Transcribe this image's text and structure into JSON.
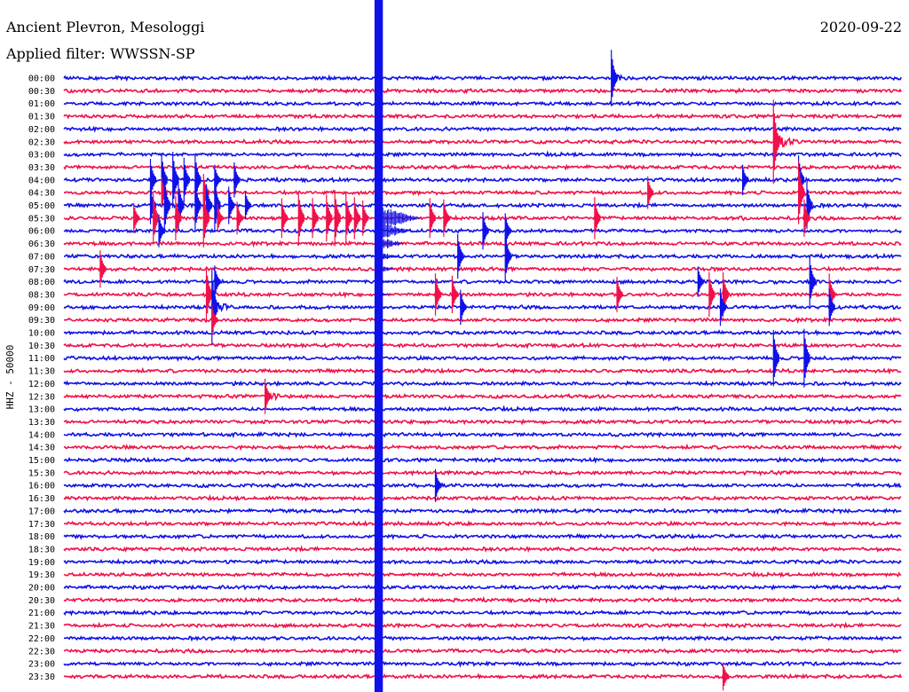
{
  "header": {
    "station": "Ancient Plevron, Mesologgi",
    "filter": "Applied filter: WWSSN-SP",
    "date": "2020-09-22"
  },
  "colors": {
    "trace_even": "#1010e8",
    "trace_odd": "#f0104a",
    "background": "#ffffff",
    "text": "#000000"
  },
  "chart_data": {
    "type": "helicorder",
    "title": "Ancient Plevron, Mesologgi",
    "subtitle": "Applied filter: WWSSN-SP",
    "date": "2020-09-22",
    "ylabel": "HHZ - 50000",
    "xlabel": "",
    "grid": false,
    "legend": "none",
    "row_interval_minutes": 30,
    "x_range_minutes": [
      0,
      30
    ],
    "row_labels": [
      "00:00",
      "00:30",
      "01:00",
      "01:30",
      "02:00",
      "02:30",
      "03:00",
      "03:30",
      "04:00",
      "04:30",
      "05:00",
      "05:30",
      "06:00",
      "06:30",
      "07:00",
      "07:30",
      "08:00",
      "08:30",
      "09:00",
      "09:30",
      "10:00",
      "10:30",
      "11:00",
      "11:30",
      "12:00",
      "12:30",
      "13:00",
      "13:30",
      "14:00",
      "14:30",
      "15:00",
      "15:30",
      "16:00",
      "16:30",
      "17:00",
      "17:30",
      "18:00",
      "18:30",
      "19:00",
      "19:30",
      "20:00",
      "20:30",
      "21:00",
      "21:30",
      "22:00",
      "22:30",
      "23:00",
      "23:30"
    ],
    "series": [
      {
        "values": [
          {
            "row": 0,
            "t": 1.8,
            "amp": 1.0,
            "dur": 0.8
          },
          {
            "row": 0,
            "t": 16.0,
            "amp": 0.5,
            "dur": 0.4
          },
          {
            "row": 0,
            "t": 19.6,
            "amp": 2.4,
            "dur": 0.7
          },
          {
            "row": 2,
            "t": 7.3,
            "amp": 1.0,
            "dur": 0.2
          },
          {
            "row": 2,
            "t": 19.2,
            "amp": 0.6,
            "dur": 0.3
          },
          {
            "row": 3,
            "t": 26.7,
            "amp": 0.5,
            "dur": 0.4
          },
          {
            "row": 5,
            "t": 25.4,
            "amp": 3.6,
            "dur": 0.9
          },
          {
            "row": 7,
            "t": 9.5,
            "amp": 0.4,
            "dur": 0.7
          },
          {
            "row": 8,
            "t": 3.1,
            "amp": 1.8,
            "dur": 0.2
          },
          {
            "row": 8,
            "t": 3.5,
            "amp": 2.3,
            "dur": 0.2
          },
          {
            "row": 8,
            "t": 3.9,
            "amp": 2.4,
            "dur": 0.2
          },
          {
            "row": 8,
            "t": 4.3,
            "amp": 1.9,
            "dur": 0.2
          },
          {
            "row": 8,
            "t": 4.7,
            "amp": 2.2,
            "dur": 0.2
          },
          {
            "row": 8,
            "t": 5.4,
            "amp": 1.3,
            "dur": 0.2
          },
          {
            "row": 8,
            "t": 6.1,
            "amp": 1.5,
            "dur": 0.2
          },
          {
            "row": 8,
            "t": 8.2,
            "amp": 1.0,
            "dur": 0.2
          },
          {
            "row": 8,
            "t": 9.2,
            "amp": 0.8,
            "dur": 0.2
          },
          {
            "row": 8,
            "t": 24.3,
            "amp": 1.3,
            "dur": 0.8
          },
          {
            "row": 8,
            "t": 26.3,
            "amp": 2.1,
            "dur": 0.2
          },
          {
            "row": 9,
            "t": 3.5,
            "amp": 1.3,
            "dur": 0.3
          },
          {
            "row": 9,
            "t": 4.3,
            "amp": 1.1,
            "dur": 0.3
          },
          {
            "row": 9,
            "t": 5.0,
            "amp": 1.6,
            "dur": 0.3
          },
          {
            "row": 9,
            "t": 20.9,
            "amp": 1.4,
            "dur": 1.0
          },
          {
            "row": 9,
            "t": 26.3,
            "amp": 2.7,
            "dur": 0.4
          },
          {
            "row": 10,
            "t": 3.1,
            "amp": 1.6,
            "dur": 0.2
          },
          {
            "row": 10,
            "t": 3.6,
            "amp": 2.4,
            "dur": 0.2
          },
          {
            "row": 10,
            "t": 4.1,
            "amp": 2.1,
            "dur": 0.2
          },
          {
            "row": 10,
            "t": 4.7,
            "amp": 2.2,
            "dur": 0.2
          },
          {
            "row": 10,
            "t": 5.1,
            "amp": 1.8,
            "dur": 0.2
          },
          {
            "row": 10,
            "t": 5.4,
            "amp": 2.3,
            "dur": 0.2
          },
          {
            "row": 10,
            "t": 5.9,
            "amp": 1.6,
            "dur": 0.2
          },
          {
            "row": 10,
            "t": 6.5,
            "amp": 1.2,
            "dur": 0.2
          },
          {
            "row": 10,
            "t": 26.6,
            "amp": 2.0,
            "dur": 0.8
          },
          {
            "row": 11,
            "t": 2.5,
            "amp": 1.3,
            "dur": 0.2
          },
          {
            "row": 11,
            "t": 3.2,
            "amp": 2.1,
            "dur": 0.2
          },
          {
            "row": 11,
            "t": 4.0,
            "amp": 1.9,
            "dur": 0.2
          },
          {
            "row": 11,
            "t": 5.0,
            "amp": 2.5,
            "dur": 0.2
          },
          {
            "row": 11,
            "t": 5.5,
            "amp": 1.2,
            "dur": 0.2
          },
          {
            "row": 11,
            "t": 6.2,
            "amp": 1.4,
            "dur": 0.2
          },
          {
            "row": 11,
            "t": 7.8,
            "amp": 1.7,
            "dur": 0.2
          },
          {
            "row": 11,
            "t": 8.4,
            "amp": 2.3,
            "dur": 0.2
          },
          {
            "row": 11,
            "t": 8.9,
            "amp": 1.7,
            "dur": 0.2
          },
          {
            "row": 11,
            "t": 9.4,
            "amp": 2.0,
            "dur": 0.2
          },
          {
            "row": 11,
            "t": 9.7,
            "amp": 2.4,
            "dur": 0.2
          },
          {
            "row": 11,
            "t": 10.1,
            "amp": 2.1,
            "dur": 0.2
          },
          {
            "row": 11,
            "t": 10.4,
            "amp": 1.8,
            "dur": 0.2
          },
          {
            "row": 11,
            "t": 10.7,
            "amp": 1.5,
            "dur": 0.2
          },
          {
            "row": 11,
            "t": 13.1,
            "amp": 1.7,
            "dur": 0.3
          },
          {
            "row": 11,
            "t": 13.6,
            "amp": 1.6,
            "dur": 0.3
          },
          {
            "row": 11,
            "t": 19.0,
            "amp": 1.8,
            "dur": 0.3
          },
          {
            "row": 11,
            "t": 24.2,
            "amp": 1.1,
            "dur": 0.6
          },
          {
            "row": 11,
            "t": 26.5,
            "amp": 1.6,
            "dur": 0.3
          },
          {
            "row": 12,
            "t": 3.4,
            "amp": 1.4,
            "dur": 0.3
          },
          {
            "row": 12,
            "t": 15.0,
            "amp": 1.6,
            "dur": 0.3
          },
          {
            "row": 12,
            "t": 15.8,
            "amp": 1.5,
            "dur": 0.3
          },
          {
            "row": 14,
            "t": 14.1,
            "amp": 1.9,
            "dur": 0.3
          },
          {
            "row": 14,
            "t": 15.8,
            "amp": 2.1,
            "dur": 0.3
          },
          {
            "row": 15,
            "t": 1.3,
            "amp": 1.6,
            "dur": 0.3
          },
          {
            "row": 16,
            "t": 5.4,
            "amp": 1.4,
            "dur": 0.3
          },
          {
            "row": 16,
            "t": 21.6,
            "amp": 0.8,
            "dur": 0.7
          },
          {
            "row": 16,
            "t": 22.7,
            "amp": 1.3,
            "dur": 0.5
          },
          {
            "row": 16,
            "t": 26.7,
            "amp": 2.1,
            "dur": 0.4
          },
          {
            "row": 17,
            "t": 5.1,
            "amp": 2.4,
            "dur": 0.4
          },
          {
            "row": 17,
            "t": 13.3,
            "amp": 1.8,
            "dur": 0.3
          },
          {
            "row": 17,
            "t": 13.9,
            "amp": 1.6,
            "dur": 0.3
          },
          {
            "row": 17,
            "t": 19.8,
            "amp": 1.5,
            "dur": 0.7
          },
          {
            "row": 17,
            "t": 23.1,
            "amp": 1.9,
            "dur": 0.3
          },
          {
            "row": 17,
            "t": 23.6,
            "amp": 1.9,
            "dur": 0.3
          },
          {
            "row": 17,
            "t": 24.3,
            "amp": 0.8,
            "dur": 0.6
          },
          {
            "row": 17,
            "t": 27.4,
            "amp": 1.8,
            "dur": 0.3
          },
          {
            "row": 18,
            "t": 0.9,
            "amp": 1.0,
            "dur": 0.6
          },
          {
            "row": 18,
            "t": 5.3,
            "amp": 3.2,
            "dur": 0.8
          },
          {
            "row": 18,
            "t": 14.2,
            "amp": 1.5,
            "dur": 0.5
          },
          {
            "row": 18,
            "t": 23.5,
            "amp": 1.6,
            "dur": 0.4
          },
          {
            "row": 18,
            "t": 27.4,
            "amp": 1.6,
            "dur": 0.3
          },
          {
            "row": 19,
            "t": 5.3,
            "amp": 1.3,
            "dur": 0.3
          },
          {
            "row": 19,
            "t": 13.6,
            "amp": 0.8,
            "dur": 0.3
          },
          {
            "row": 21,
            "t": 25.2,
            "amp": 0.5,
            "dur": 0.6
          },
          {
            "row": 22,
            "t": 16.6,
            "amp": 0.7,
            "dur": 0.6
          },
          {
            "row": 22,
            "t": 25.4,
            "amp": 2.4,
            "dur": 0.3
          },
          {
            "row": 22,
            "t": 26.5,
            "amp": 2.5,
            "dur": 0.5
          },
          {
            "row": 24,
            "t": 6.2,
            "amp": 0.8,
            "dur": 0.4
          },
          {
            "row": 25,
            "t": 7.2,
            "amp": 1.5,
            "dur": 1.6
          },
          {
            "row": 25,
            "t": 2.3,
            "amp": 0.4,
            "dur": 0.4
          },
          {
            "row": 29,
            "t": 21.0,
            "amp": 0.5,
            "dur": 0.8
          },
          {
            "row": 32,
            "t": 13.3,
            "amp": 1.4,
            "dur": 0.5
          },
          {
            "row": 33,
            "t": 0.4,
            "amp": 0.8,
            "dur": 0.4
          },
          {
            "row": 34,
            "t": 22.4,
            "amp": 0.6,
            "dur": 0.9
          },
          {
            "row": 35,
            "t": 8.9,
            "amp": 0.6,
            "dur": 0.4
          },
          {
            "row": 37,
            "t": 16.7,
            "amp": 0.5,
            "dur": 0.7
          },
          {
            "row": 47,
            "t": 23.6,
            "amp": 1.2,
            "dur": 0.6
          }
        ]
      },
      {
        "values": [
          {
            "t_start": 11.12,
            "t_end": 11.42,
            "from_row": 0,
            "to_row": 47,
            "amp_max": 6.0,
            "note": "saturated"
          }
        ]
      }
    ]
  }
}
